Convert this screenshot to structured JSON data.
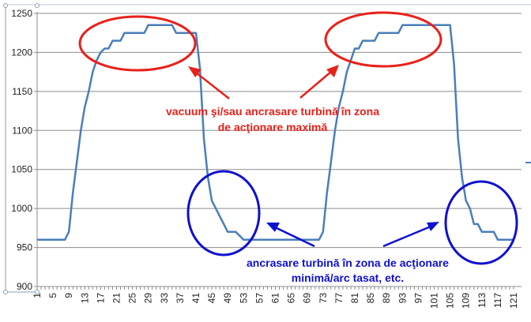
{
  "chart_data": {
    "type": "line",
    "title": "",
    "xlabel": "",
    "ylabel": "",
    "ylim": [
      900,
      1250
    ],
    "yticks": [
      900,
      950,
      1000,
      1050,
      1100,
      1150,
      1200,
      1250
    ],
    "xlim": [
      1,
      121
    ],
    "xtick_step": 4,
    "grid": "horizontal",
    "series_color": "#4a7ebb",
    "x_start": 1,
    "values": [
      960,
      960,
      960,
      960,
      960,
      960,
      960,
      960,
      970,
      1020,
      1060,
      1100,
      1130,
      1150,
      1175,
      1190,
      1200,
      1205,
      1205,
      1215,
      1215,
      1215,
      1225,
      1225,
      1225,
      1225,
      1225,
      1225,
      1235,
      1235,
      1235,
      1235,
      1235,
      1235,
      1235,
      1225,
      1225,
      1225,
      1225,
      1225,
      1225,
      1180,
      1090,
      1040,
      1010,
      1000,
      990,
      980,
      970,
      970,
      970,
      965,
      960,
      960,
      960,
      960,
      960,
      960,
      960,
      960,
      960,
      960,
      960,
      960,
      960,
      960,
      960,
      960,
      960,
      960,
      960,
      960,
      970,
      1020,
      1060,
      1100,
      1130,
      1150,
      1175,
      1190,
      1205,
      1205,
      1215,
      1215,
      1215,
      1215,
      1225,
      1225,
      1225,
      1225,
      1225,
      1225,
      1235,
      1235,
      1235,
      1235,
      1235,
      1235,
      1235,
      1235,
      1235,
      1235,
      1235,
      1235,
      1235,
      1185,
      1090,
      1040,
      1010,
      1000,
      980,
      980,
      970,
      970,
      970,
      970,
      960,
      960,
      960,
      960,
      960
    ],
    "annotations": {
      "max_zone": {
        "lines": [
          "vacuum şi/sau ancrasare turbină în zona",
          "de acţionare maximă"
        ],
        "color": "#e8201a"
      },
      "min_zone": {
        "lines": [
          "ancrasare turbină în zona de acţionare",
          "minimă/arc tasat, etc."
        ],
        "color": "#1010d0"
      }
    }
  }
}
